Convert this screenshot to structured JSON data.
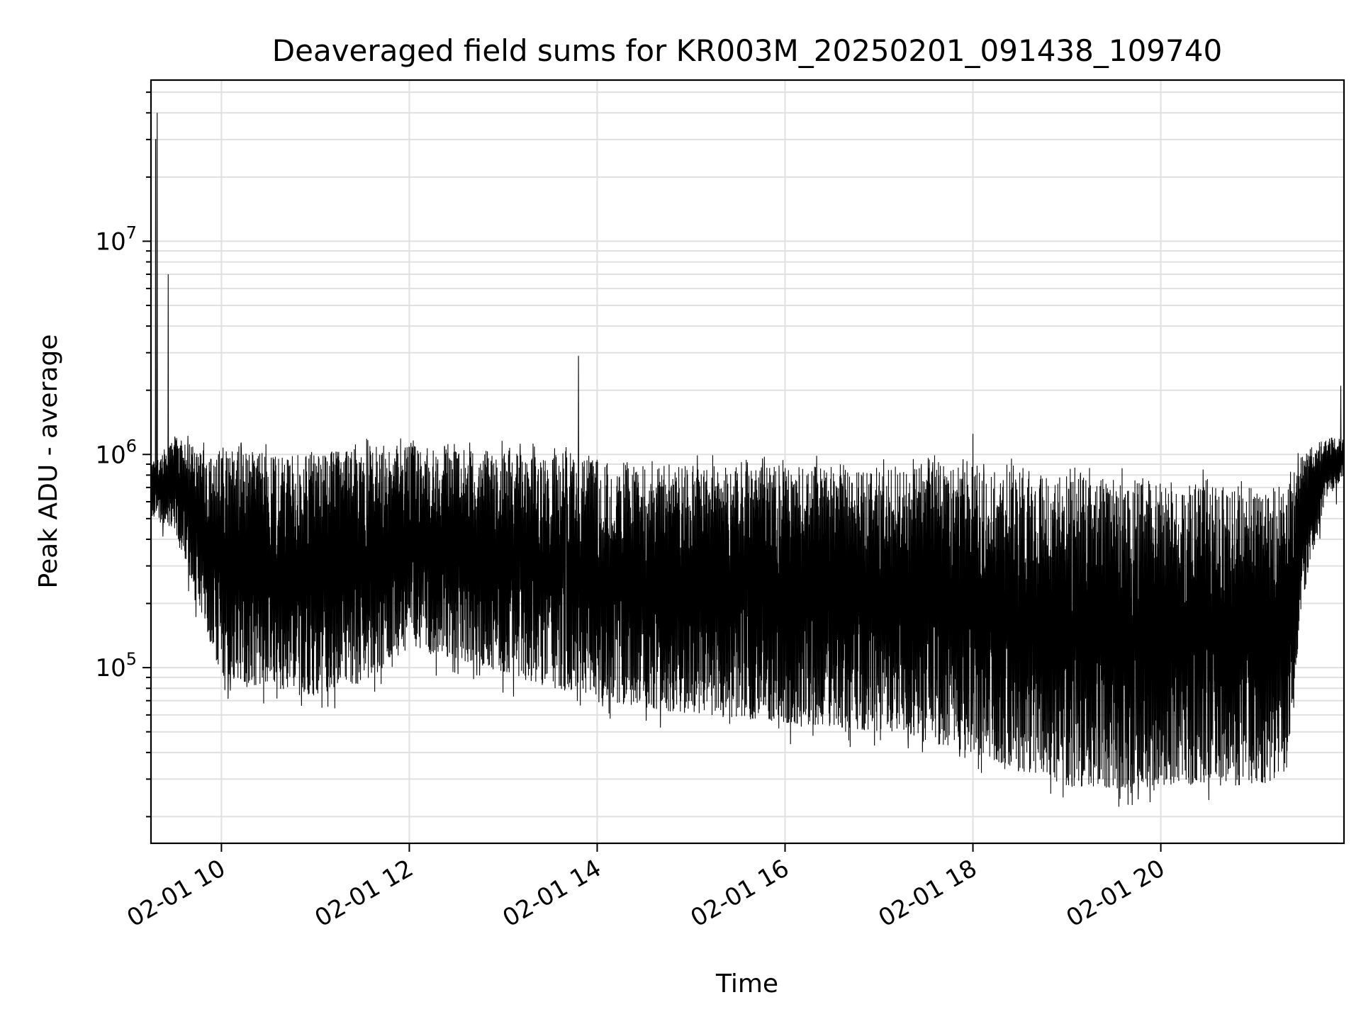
{
  "chart_data": {
    "type": "line",
    "title": "Deaveraged field sums for KR003M_20250201_091438_109740",
    "xlabel": "Time",
    "ylabel": "Peak ADU - average",
    "y_scale": "log",
    "grid": "major and minor",
    "colors": {
      "line": "#000000",
      "grid": "#e0e0e0",
      "frame": "#000000"
    },
    "xlim": [
      "2025-02-01 09:15",
      "2025-02-01 21:57"
    ],
    "ylim": [
      15000,
      57000000
    ],
    "x_ticks": [
      {
        "value": "2025-02-01 10:00",
        "label": "02-01 10"
      },
      {
        "value": "2025-02-01 12:00",
        "label": "02-01 12"
      },
      {
        "value": "2025-02-01 14:00",
        "label": "02-01 14"
      },
      {
        "value": "2025-02-01 16:00",
        "label": "02-01 16"
      },
      {
        "value": "2025-02-01 18:00",
        "label": "02-01 18"
      },
      {
        "value": "2025-02-01 20:00",
        "label": "02-01 20"
      }
    ],
    "y_ticks": [
      {
        "value": 100000,
        "base": "10",
        "exp": "5"
      },
      {
        "value": 1000000,
        "base": "10",
        "exp": "6"
      },
      {
        "value": 10000000,
        "base": "10",
        "exp": "7"
      }
    ],
    "series": [
      {
        "envelope": [
          {
            "t": "2025-02-01 09:15",
            "low": 500000,
            "high": 900000
          },
          {
            "t": "2025-02-01 09:30",
            "low": 450000,
            "high": 1200000
          },
          {
            "t": "2025-02-01 10:00",
            "low": 90000,
            "high": 1100000
          },
          {
            "t": "2025-02-01 10:30",
            "low": 80000,
            "high": 1000000
          },
          {
            "t": "2025-02-01 11:00",
            "low": 75000,
            "high": 1000000
          },
          {
            "t": "2025-02-01 11:30",
            "low": 85000,
            "high": 1100000
          },
          {
            "t": "2025-02-01 12:00",
            "low": 120000,
            "high": 1100000
          },
          {
            "t": "2025-02-01 12:30",
            "low": 110000,
            "high": 1050000
          },
          {
            "t": "2025-02-01 13:00",
            "low": 95000,
            "high": 1050000
          },
          {
            "t": "2025-02-01 13:30",
            "low": 80000,
            "high": 1000000
          },
          {
            "t": "2025-02-01 14:00",
            "low": 70000,
            "high": 950000
          },
          {
            "t": "2025-02-01 14:30",
            "low": 65000,
            "high": 900000
          },
          {
            "t": "2025-02-01 15:00",
            "low": 60000,
            "high": 900000
          },
          {
            "t": "2025-02-01 15:30",
            "low": 58000,
            "high": 880000
          },
          {
            "t": "2025-02-01 16:00",
            "low": 55000,
            "high": 880000
          },
          {
            "t": "2025-02-01 16:30",
            "low": 53000,
            "high": 880000
          },
          {
            "t": "2025-02-01 17:00",
            "low": 50000,
            "high": 880000
          },
          {
            "t": "2025-02-01 17:30",
            "low": 45000,
            "high": 880000
          },
          {
            "t": "2025-02-01 18:00",
            "low": 40000,
            "high": 900000
          },
          {
            "t": "2025-02-01 18:30",
            "low": 33000,
            "high": 850000
          },
          {
            "t": "2025-02-01 19:00",
            "low": 28000,
            "high": 800000
          },
          {
            "t": "2025-02-01 19:30",
            "low": 27000,
            "high": 780000
          },
          {
            "t": "2025-02-01 20:00",
            "low": 28000,
            "high": 780000
          },
          {
            "t": "2025-02-01 20:30",
            "low": 28000,
            "high": 780000
          },
          {
            "t": "2025-02-01 21:00",
            "low": 28000,
            "high": 750000
          },
          {
            "t": "2025-02-01 21:20",
            "low": 30000,
            "high": 700000
          },
          {
            "t": "2025-02-01 21:30",
            "low": 200000,
            "high": 1000000
          },
          {
            "t": "2025-02-01 21:45",
            "low": 600000,
            "high": 1200000
          },
          {
            "t": "2025-02-01 21:57",
            "low": 800000,
            "high": 1200000
          }
        ],
        "spikes": [
          {
            "t": "2025-02-01 09:18",
            "value": 30000000
          },
          {
            "t": "2025-02-01 09:19",
            "value": 40000000
          },
          {
            "t": "2025-02-01 09:26",
            "value": 7000000
          },
          {
            "t": "2025-02-01 13:48",
            "value": 2900000
          },
          {
            "t": "2025-02-01 18:00",
            "value": 1250000
          },
          {
            "t": "2025-02-01 21:55",
            "value": 2100000
          }
        ]
      }
    ]
  }
}
